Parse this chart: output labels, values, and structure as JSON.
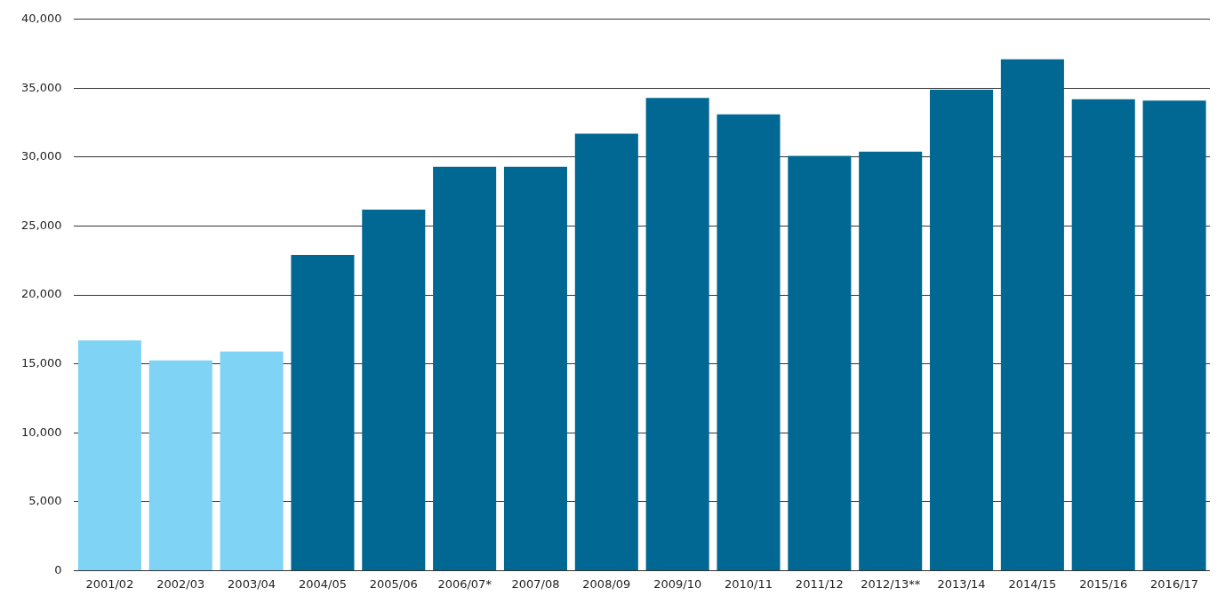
{
  "chart_data": {
    "type": "bar",
    "categories": [
      "2001/02",
      "2002/03",
      "2003/04",
      "2004/05",
      "2005/06",
      "2006/07*",
      "2007/08",
      "2008/09",
      "2009/10",
      "2010/11",
      "2011/12",
      "2012/13**",
      "2013/14",
      "2014/15",
      "2015/16",
      "2016/17"
    ],
    "values": [
      16700,
      15250,
      15900,
      22900,
      26200,
      29300,
      29300,
      31700,
      34300,
      33100,
      30100,
      30400,
      34900,
      37100,
      34200,
      34100
    ],
    "colors": [
      "#7fd3f5",
      "#7fd3f5",
      "#7fd3f5",
      "#006892",
      "#006892",
      "#006892",
      "#006892",
      "#006892",
      "#006892",
      "#006892",
      "#006892",
      "#006892",
      "#006892",
      "#006892",
      "#006892",
      "#006892"
    ],
    "ylim": [
      0,
      40000
    ],
    "yticks": [
      {
        "value": 0,
        "label": "0"
      },
      {
        "value": 5000,
        "label": "5,000"
      },
      {
        "value": 10000,
        "label": "10,000"
      },
      {
        "value": 15000,
        "label": "15,000"
      },
      {
        "value": 20000,
        "label": "20,000"
      },
      {
        "value": 25000,
        "label": "25,000"
      },
      {
        "value": 30000,
        "label": "30,000"
      },
      {
        "value": 35000,
        "label": "35,000"
      },
      {
        "value": 40000,
        "label": "40,000"
      }
    ],
    "grid": "y",
    "legend": false
  }
}
